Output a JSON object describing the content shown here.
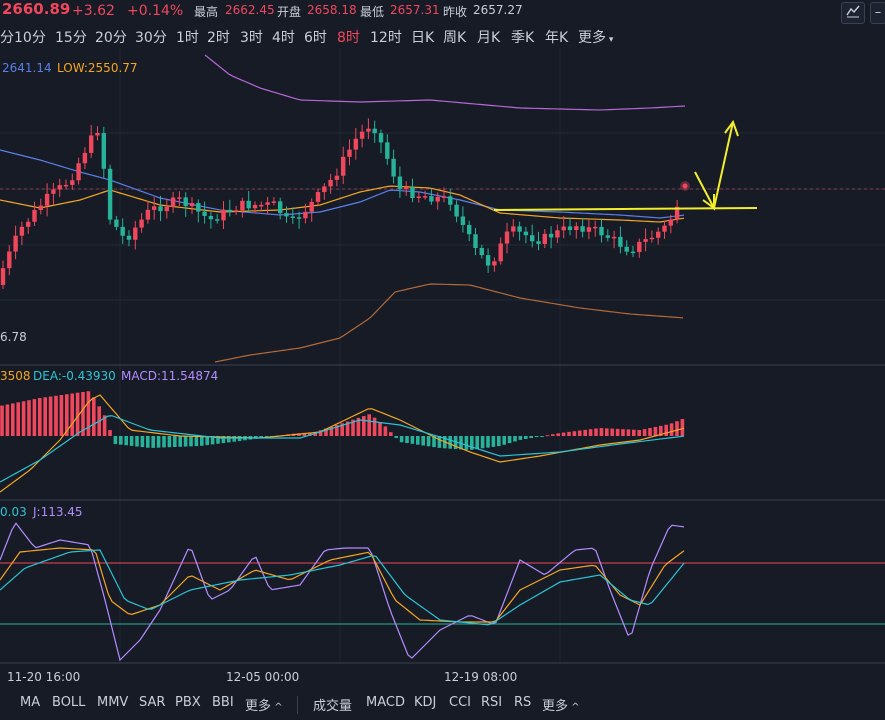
{
  "quote": {
    "last": "2660.89",
    "change": "+3.62",
    "change_pct": "+0.14%",
    "high_label": "最高",
    "high": "2662.45",
    "open_label": "开盘",
    "open": "2658.18",
    "low_label": "最低",
    "low": "2657.31",
    "prev_label": "昨收",
    "prev": "2657.27"
  },
  "timeframes": [
    "分",
    "10分",
    "15分",
    "20分",
    "30分",
    "1时",
    "2时",
    "3时",
    "4时",
    "6时",
    "8时",
    "12时",
    "日K",
    "周K",
    "月K",
    "季K",
    "年K",
    "更多"
  ],
  "active_timeframe": "8时",
  "main_panel": {
    "legend_blue": "2641.14",
    "legend_low": "LOW:2550.77",
    "left_value": "6.78"
  },
  "macd_panel": {
    "dif": "3508",
    "dea": "DEA:-0.43930",
    "macd": "MACD:11.54874"
  },
  "kdj_panel": {
    "d": "0.03",
    "j": "J:113.45"
  },
  "time_axis": [
    "11-20 16:00",
    "12-05 00:00",
    "12-19 08:00"
  ],
  "indicators_main": [
    "MA",
    "BOLL",
    "MMV",
    "SAR",
    "PBX",
    "BBI",
    "更多"
  ],
  "indicators_sub": [
    "成交量",
    "MACD",
    "KDJ",
    "CCI",
    "RSI",
    "RS",
    "更多"
  ],
  "colors": {
    "up": "#f0475c",
    "down": "#26b39a",
    "boll_upper": "#b768d8",
    "boll_lower": "#b36a3a",
    "ma_orange": "#f5a623",
    "ma_blue": "#5b7fe8",
    "macd_dif": "#f5a623",
    "macd_dea": "#2bc4d6",
    "kdj_j": "#b48cff",
    "kdj_k": "#f5a623",
    "kdj_d": "#2bc4d6",
    "drawing": "#f2ee2a"
  },
  "icons": [
    "chart-settings-icon",
    "minus-icon"
  ]
}
